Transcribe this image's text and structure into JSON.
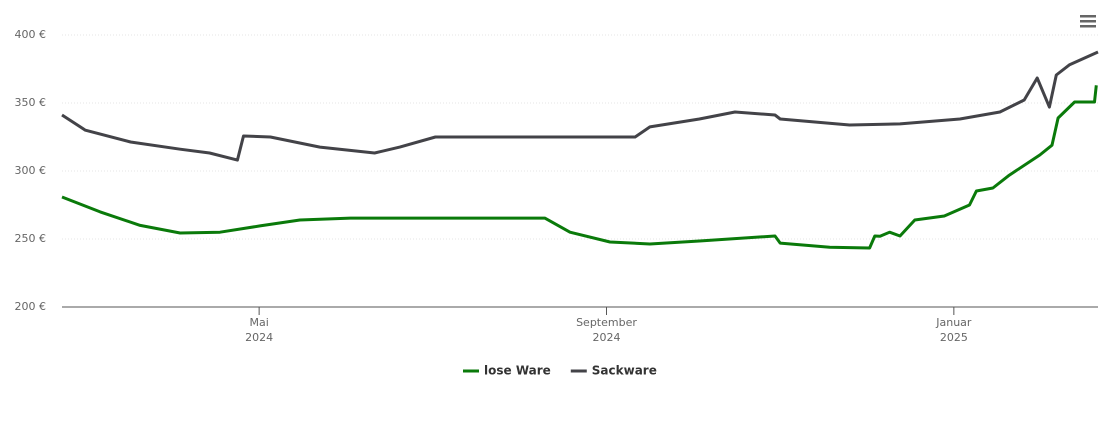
{
  "chart_data": {
    "type": "line",
    "x": [],
    "xlim": [
      2.73,
      14.66
    ],
    "xticks": [
      {
        "value": 5,
        "label": "Mai 2024"
      },
      {
        "value": 9,
        "label": "September 2024"
      },
      {
        "value": 13,
        "label": "Januar 2025"
      }
    ],
    "ylim": [
      200,
      400
    ],
    "yticks": [
      {
        "value": 200,
        "label": "200 €"
      },
      {
        "value": 250,
        "label": "250 €"
      },
      {
        "value": 300,
        "label": "300 €"
      },
      {
        "value": 350,
        "label": "350 €"
      },
      {
        "value": 400,
        "label": "400 €"
      }
    ],
    "grid": true,
    "legend": "bottom",
    "series": [
      {
        "name": "lose Ware",
        "color": "#0a7a0a",
        "x": [
          2.73,
          3.17,
          3.63,
          4.09,
          4.55,
          5.01,
          5.47,
          6.05,
          8.29,
          8.58,
          9.04,
          9.5,
          10.07,
          10.94,
          11.0,
          11.57,
          12.03,
          12.09,
          12.15,
          12.26,
          12.38,
          12.55,
          12.89,
          13.18,
          13.26,
          13.45,
          13.64,
          13.99,
          14.13,
          14.2,
          14.39,
          14.62,
          14.64
        ],
        "values": [
          280.9,
          269.9,
          260,
          254.4,
          255,
          259.6,
          264,
          265.4,
          265.4,
          255,
          247.8,
          246.3,
          248.5,
          252.2,
          247,
          244,
          243.4,
          252.2,
          252,
          255,
          252.2,
          264,
          266.9,
          275,
          285.3,
          287.5,
          297,
          311.8,
          319,
          339,
          350.7,
          350.7,
          363
        ]
      },
      {
        "name": "Sackware",
        "color": "#434348",
        "x": [
          2.73,
          3.0,
          3.52,
          4.09,
          4.43,
          4.75,
          4.82,
          5.13,
          5.7,
          6.33,
          6.62,
          7.03,
          9.33,
          9.5,
          10.07,
          10.48,
          10.94,
          11.0,
          11.8,
          12.38,
          13.07,
          13.53,
          13.81,
          13.96,
          14.1,
          14.18,
          14.33,
          14.66
        ],
        "values": [
          341.2,
          330,
          321.3,
          316,
          313.2,
          308,
          325.7,
          325,
          317.6,
          313.2,
          317.6,
          325,
          325,
          332.4,
          338.2,
          343.4,
          341.2,
          338.2,
          333.8,
          334.6,
          338.2,
          343.4,
          352.2,
          368.4,
          347,
          370.6,
          378,
          387.5
        ]
      }
    ]
  }
}
